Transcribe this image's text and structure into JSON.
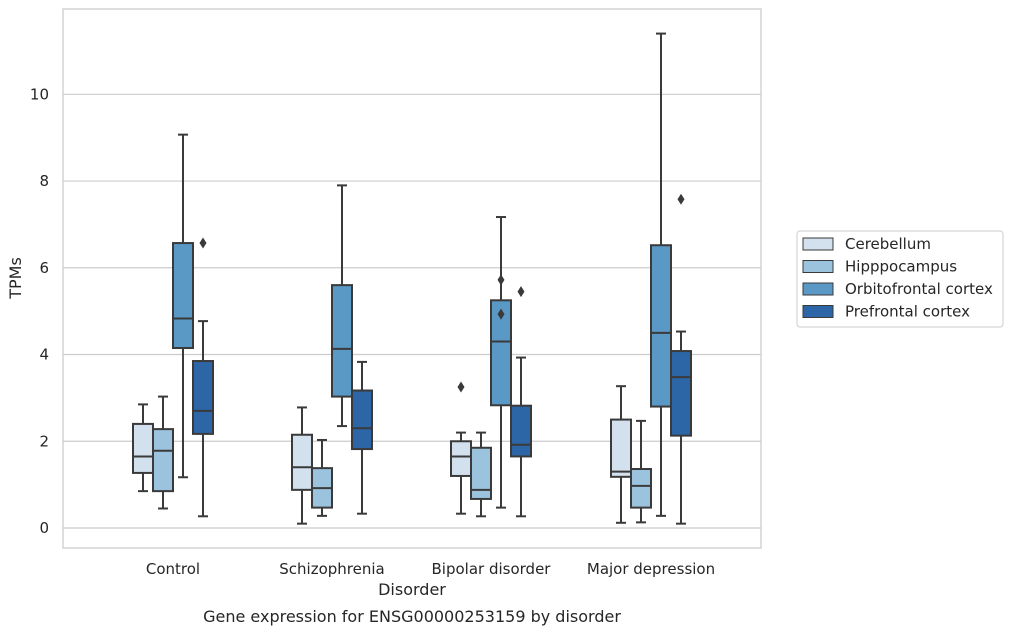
{
  "chart_data": {
    "type": "boxplot",
    "caption": "Gene expression for ENSG00000253159 by disorder",
    "xlabel": "Disorder",
    "ylabel": "TPMs",
    "ylim": [
      -0.45,
      11.9
    ],
    "yticks": [
      0,
      2,
      4,
      6,
      8,
      10
    ],
    "grid": "horizontal",
    "legend_position": "right",
    "categories": [
      "Control",
      "Schizophrenia",
      "Bipolar disorder",
      "Major depression"
    ],
    "series": [
      {
        "name": "Cerebellum",
        "color": "#d3e1ef",
        "boxes": [
          {
            "whisker_low": 0.85,
            "q1": 1.27,
            "median": 1.65,
            "q3": 2.4,
            "whisker_high": 2.85,
            "outliers": []
          },
          {
            "whisker_low": 0.1,
            "q1": 0.88,
            "median": 1.4,
            "q3": 2.15,
            "whisker_high": 2.78,
            "outliers": []
          },
          {
            "whisker_low": 0.33,
            "q1": 1.2,
            "median": 1.65,
            "q3": 2.0,
            "whisker_high": 2.2,
            "outliers": [
              3.25
            ]
          },
          {
            "whisker_low": 0.12,
            "q1": 1.18,
            "median": 1.3,
            "q3": 2.5,
            "whisker_high": 3.27,
            "outliers": []
          }
        ]
      },
      {
        "name": "Hipppocampus",
        "color": "#9cc3de",
        "boxes": [
          {
            "whisker_low": 0.45,
            "q1": 0.85,
            "median": 1.78,
            "q3": 2.28,
            "whisker_high": 3.03,
            "outliers": []
          },
          {
            "whisker_low": 0.28,
            "q1": 0.47,
            "median": 0.92,
            "q3": 1.38,
            "whisker_high": 2.03,
            "outliers": []
          },
          {
            "whisker_low": 0.27,
            "q1": 0.67,
            "median": 0.88,
            "q3": 1.85,
            "whisker_high": 2.2,
            "outliers": []
          },
          {
            "whisker_low": 0.13,
            "q1": 0.47,
            "median": 0.97,
            "q3": 1.36,
            "whisker_high": 2.47,
            "outliers": []
          }
        ]
      },
      {
        "name": "Orbitofrontal cortex",
        "color": "#5a98c5",
        "boxes": [
          {
            "whisker_low": 1.17,
            "q1": 4.15,
            "median": 4.83,
            "q3": 6.57,
            "whisker_high": 9.07,
            "outliers": []
          },
          {
            "whisker_low": 2.35,
            "q1": 3.03,
            "median": 4.13,
            "q3": 5.6,
            "whisker_high": 7.9,
            "outliers": []
          },
          {
            "whisker_low": 0.47,
            "q1": 2.83,
            "median": 4.3,
            "q3": 5.25,
            "whisker_high": 7.17,
            "outliers": [
              4.93,
              5.72
            ]
          },
          {
            "whisker_low": 0.28,
            "q1": 2.8,
            "median": 4.5,
            "q3": 6.52,
            "whisker_high": 11.4,
            "outliers": []
          }
        ]
      },
      {
        "name": "Prefrontal cortex",
        "color": "#2d66a6",
        "boxes": [
          {
            "whisker_low": 0.27,
            "q1": 2.17,
            "median": 2.7,
            "q3": 3.85,
            "whisker_high": 4.77,
            "outliers": [
              6.57
            ]
          },
          {
            "whisker_low": 0.33,
            "q1": 1.82,
            "median": 2.3,
            "q3": 3.17,
            "whisker_high": 3.83,
            "outliers": []
          },
          {
            "whisker_low": 0.27,
            "q1": 1.65,
            "median": 1.92,
            "q3": 2.82,
            "whisker_high": 3.93,
            "outliers": [
              5.45
            ]
          },
          {
            "whisker_low": 0.1,
            "q1": 2.13,
            "median": 3.48,
            "q3": 4.08,
            "whisker_high": 4.53,
            "outliers": [
              7.58
            ]
          }
        ]
      }
    ]
  }
}
